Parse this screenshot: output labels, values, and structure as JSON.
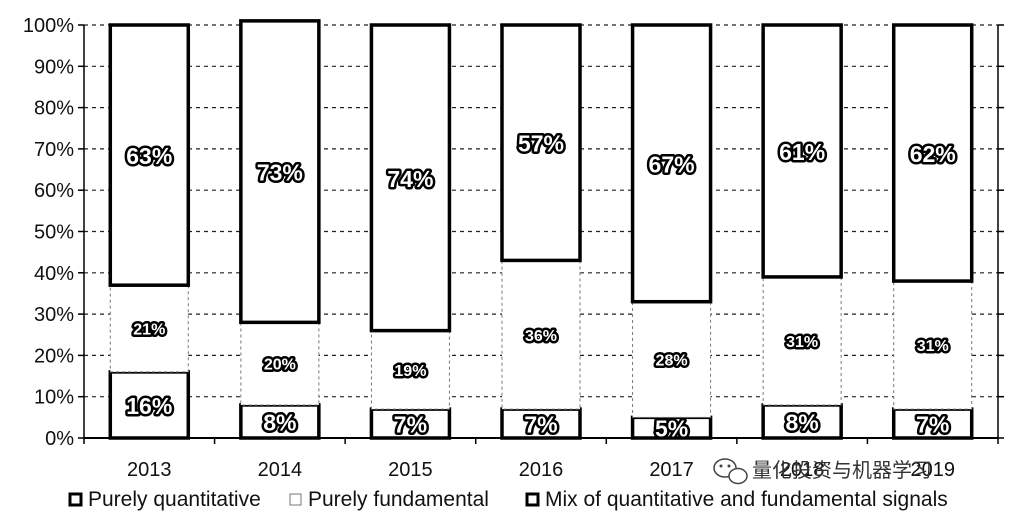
{
  "chart_data": {
    "type": "bar",
    "stacked": true,
    "percent_stacked": true,
    "categories": [
      "2013",
      "2014",
      "2015",
      "2016",
      "2017",
      "2018",
      "2019"
    ],
    "series": [
      {
        "name": "Purely quantitative",
        "values": [
          16,
          8,
          7,
          7,
          5,
          8,
          7
        ],
        "labels": [
          "16%",
          "8%",
          "7%",
          "7%",
          "5%",
          "8%",
          "7%"
        ]
      },
      {
        "name": "Purely fundamental",
        "values": [
          21,
          20,
          19,
          36,
          28,
          31,
          31
        ],
        "labels": [
          "21%",
          "20%",
          "19%",
          "36%",
          "28%",
          "31%",
          "31%"
        ]
      },
      {
        "name": "Mix of quantitative and fundamental signals",
        "values": [
          63,
          73,
          74,
          57,
          67,
          61,
          62
        ],
        "labels": [
          "63%",
          "73%",
          "74%",
          "57%",
          "67%",
          "61%",
          "62%"
        ]
      }
    ],
    "yticks": [
      "0%",
      "10%",
      "20%",
      "30%",
      "40%",
      "50%",
      "60%",
      "70%",
      "80%",
      "90%",
      "100%"
    ],
    "ylim": [
      0,
      100
    ],
    "grid": "dashed horizontal",
    "legend_position": "bottom"
  },
  "watermark": {
    "text": "量化投资与机器学习",
    "icon": "wechat-icon"
  }
}
